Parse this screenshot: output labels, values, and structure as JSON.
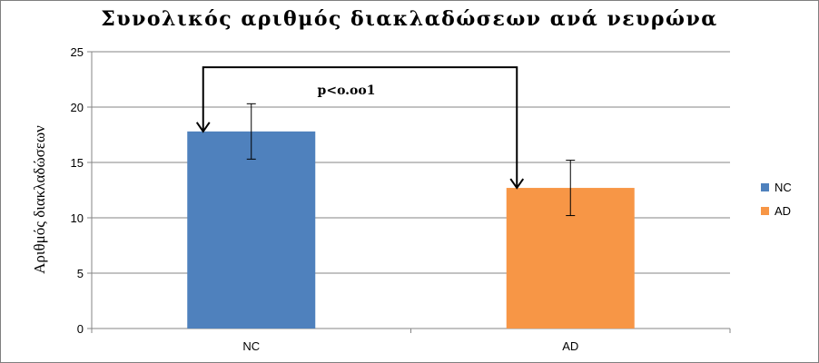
{
  "chart_data": {
    "type": "bar",
    "title": "Συνολικός αριθμός διακλαδώσεων ανά νευρώνα",
    "ylabel": "Αριθμός διακλαδώσεων",
    "xlabel": "",
    "ylim": [
      0,
      25
    ],
    "yticks": [
      0,
      5,
      10,
      15,
      20,
      25
    ],
    "grid": true,
    "legend_position": "right",
    "categories": [
      "NC",
      "AD"
    ],
    "series": [
      {
        "name": "NC",
        "values": [
          17.8,
          null
        ],
        "error": [
          2.5,
          null
        ],
        "color": "#4f81bd"
      },
      {
        "name": "AD",
        "values": [
          null,
          12.7
        ],
        "error": [
          null,
          2.5
        ],
        "color": "#f79646"
      }
    ],
    "annotation": {
      "text": "p<o.oo1",
      "bracket_level": 23.6
    }
  }
}
